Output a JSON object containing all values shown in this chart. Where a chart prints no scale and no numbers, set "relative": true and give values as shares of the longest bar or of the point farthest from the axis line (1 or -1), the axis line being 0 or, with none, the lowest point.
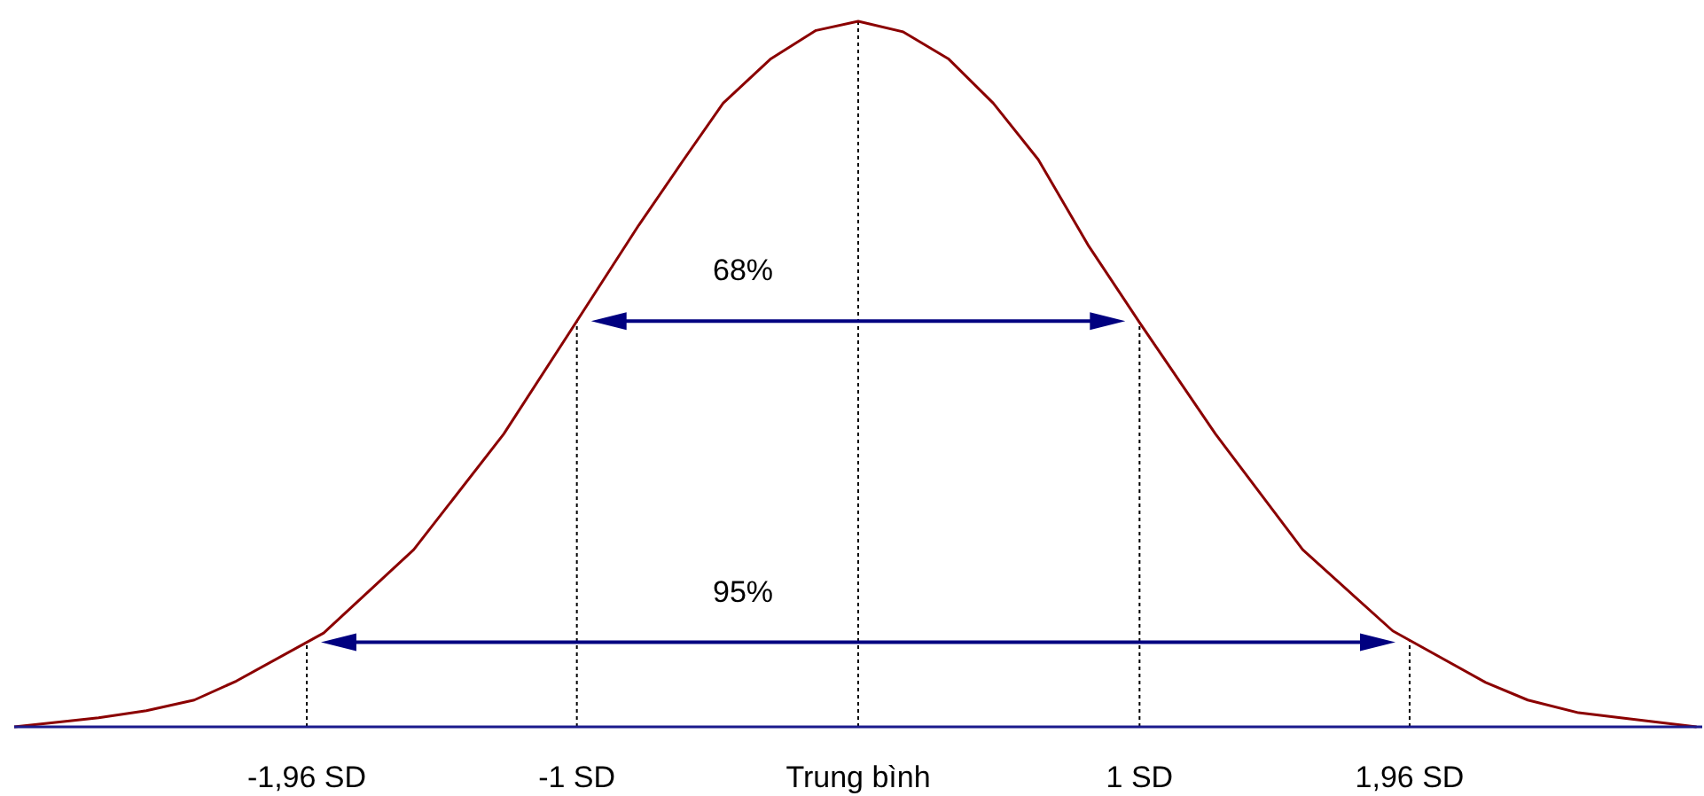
{
  "chart_data": {
    "type": "line",
    "relative": true,
    "marker": "none",
    "line_style": "solid",
    "x": [
      -3.0,
      -2.7,
      -2.53,
      -2.36,
      -2.21,
      -1.9,
      -1.58,
      -1.26,
      -1.0,
      -0.78,
      -0.62,
      -0.48,
      -0.31,
      -0.15,
      0,
      0.16,
      0.32,
      0.48,
      0.64,
      0.82,
      1.0,
      1.27,
      1.58,
      1.9,
      2.23,
      2.38,
      2.56,
      2.71,
      2.98
    ],
    "series": [
      {
        "color": "#8b0000",
        "values": [
          0,
          0.013,
          0.023,
          0.038,
          0.065,
          0.133,
          0.251,
          0.415,
          0.575,
          0.711,
          0.804,
          0.884,
          0.947,
          0.987,
          1,
          0.985,
          0.947,
          0.884,
          0.804,
          0.681,
          0.573,
          0.415,
          0.251,
          0.136,
          0.063,
          0.038,
          0.02,
          0.013,
          0
        ]
      }
    ],
    "xlim": [
      -3,
      3
    ],
    "xticks": [
      {
        "value": -1.96,
        "label": "-1,96 SD"
      },
      {
        "value": -1,
        "label": "-1 SD"
      },
      {
        "value": 0,
        "label": "Trung bình"
      },
      {
        "value": 1,
        "label": "1 SD"
      },
      {
        "value": 1.96,
        "label": "1,96 SD"
      }
    ],
    "ref_lines": [
      {
        "axis": "x",
        "value": -1.96,
        "color": "#000000",
        "line_style": "dotted"
      },
      {
        "axis": "x",
        "value": -1,
        "color": "#000000",
        "line_style": "dotted"
      },
      {
        "axis": "x",
        "value": 0,
        "color": "#000000",
        "line_style": "dotted"
      },
      {
        "axis": "x",
        "value": 1,
        "color": "#000000",
        "line_style": "dotted"
      },
      {
        "axis": "x",
        "value": 1.96,
        "color": "#000000",
        "line_style": "dotted"
      }
    ],
    "annotations": [
      "68%",
      "95%"
    ]
  }
}
